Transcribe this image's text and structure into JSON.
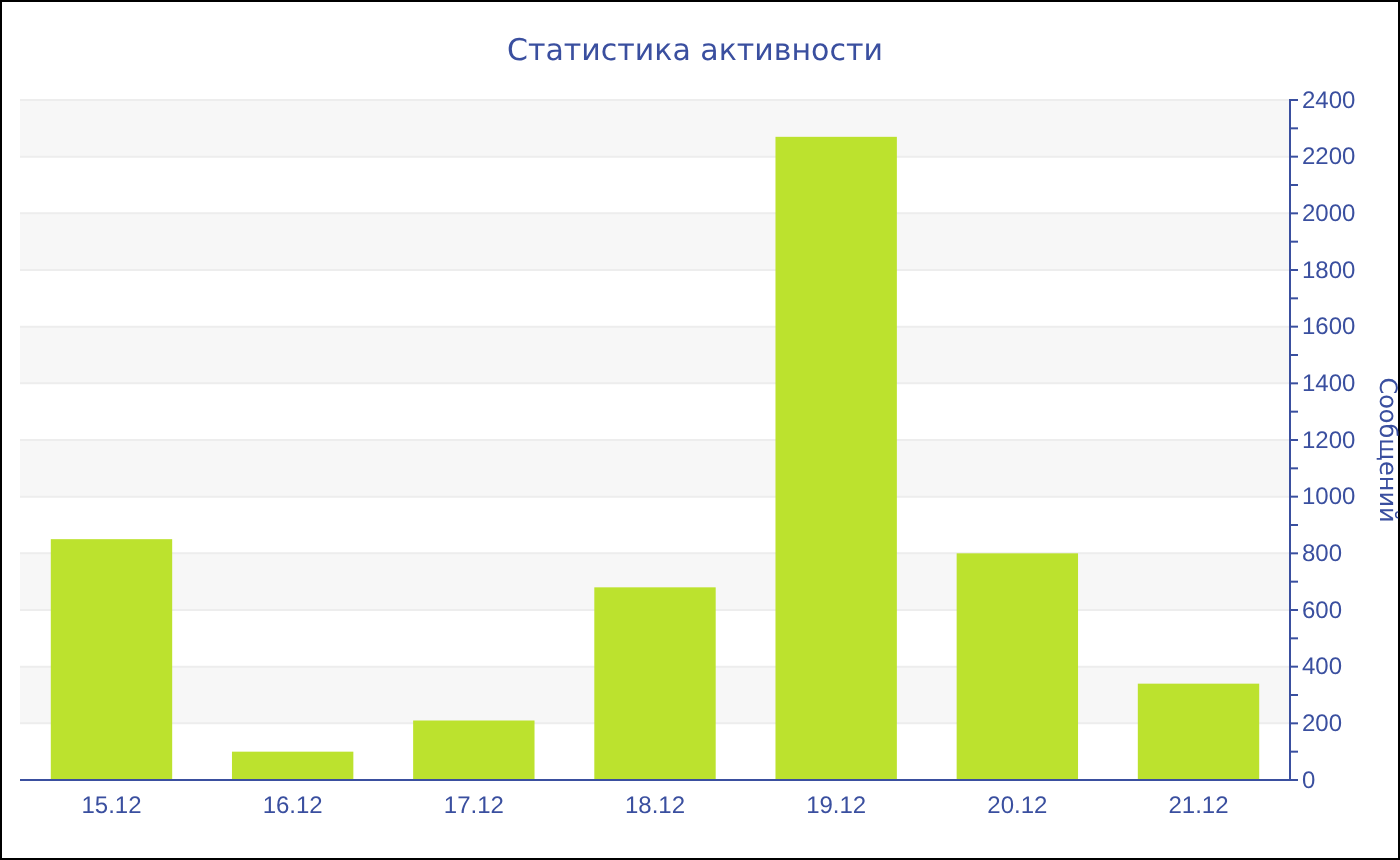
{
  "chart_data": {
    "type": "bar",
    "title": "Статистика активности",
    "ylabel": "Сообщений",
    "categories": [
      "15.12",
      "16.12",
      "17.12",
      "18.12",
      "19.12",
      "20.12",
      "21.12"
    ],
    "values": [
      850,
      100,
      210,
      680,
      2270,
      800,
      340
    ],
    "color": "#bce22e",
    "ylim": [
      0,
      2400
    ],
    "yticks": [
      0,
      {
        "value": 100,
        "label": null
      },
      200,
      {
        "value": 300,
        "label": null
      },
      400,
      {
        "value": 500,
        "label": null
      },
      600,
      {
        "value": 700,
        "label": null
      },
      800,
      {
        "value": 900,
        "label": null
      },
      1000,
      {
        "value": 1100,
        "label": null
      },
      1200,
      {
        "value": 1300,
        "label": null
      },
      1400,
      {
        "value": 1500,
        "label": null
      },
      1600,
      {
        "value": 1700,
        "label": null
      },
      1800,
      {
        "value": 1900,
        "label": null
      },
      2000,
      {
        "value": 2100,
        "label": null
      },
      2200,
      {
        "value": 2300,
        "label": null
      },
      2400
    ],
    "grid": "y"
  }
}
